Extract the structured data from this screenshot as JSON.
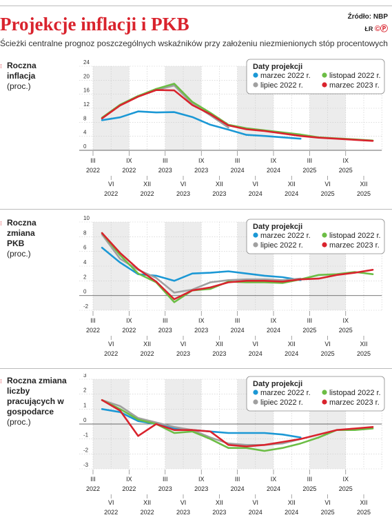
{
  "header": {
    "title": "Projekcje inflacji i PKB",
    "subtitle": "Ścieżki centralne prognoz poszczególnych wskaźników przy założeniu niezmienionych stóp procentowych",
    "source": "Źródło: NBP",
    "author": "ŁR"
  },
  "legend_title": "Daty projekcji",
  "colors": {
    "marzec2022": "#1b98d5",
    "lipiec2022": "#a0a0a0",
    "listopad2022": "#6cbd45",
    "marzec2023": "#d9232d"
  },
  "chart_data": [
    {
      "type": "line",
      "title": "Roczna inflacja",
      "unit": "(proc.)",
      "ylim": [
        0,
        24
      ],
      "yticks": [
        0,
        4,
        8,
        12,
        16,
        20,
        24
      ],
      "x_top": [
        "III",
        "IX",
        "III",
        "IX",
        "III",
        "IX",
        "III",
        "IX"
      ],
      "x_top_years": [
        "2022",
        "2022",
        "2023",
        "2023",
        "2024",
        "2024",
        "2025",
        "2025"
      ],
      "x_bottom": [
        "VI",
        "XII",
        "VI",
        "XII",
        "VI",
        "XII",
        "VI",
        "XII"
      ],
      "x_bottom_years": [
        "2022",
        "2022",
        "2023",
        "2023",
        "2024",
        "2024",
        "2025",
        "2025"
      ],
      "series": [
        {
          "name": "marzec 2022 r.",
          "color_key": "marzec2022",
          "x": [
            0,
            1,
            2,
            3,
            4,
            5,
            6,
            7,
            8,
            9,
            10,
            11
          ],
          "values": [
            8.6,
            9.4,
            11.1,
            10.8,
            10.9,
            9.5,
            7.3,
            5.9,
            4.4,
            4.1,
            3.7,
            3.3
          ]
        },
        {
          "name": "lipiec 2022 r.",
          "color_key": "lipiec2022",
          "x": [
            0,
            1,
            2,
            3,
            4,
            5,
            6,
            7
          ],
          "values": [
            9.1,
            13.0,
            15.5,
            17.2,
            18.5,
            13.3,
            10.0,
            6.5
          ]
        },
        {
          "name": "listopad 2022 r.",
          "color_key": "listopad2022",
          "x": [
            0,
            1,
            2,
            3,
            4,
            5,
            6,
            7,
            8,
            9,
            10,
            11,
            12,
            13,
            14,
            15
          ],
          "values": [
            9.3,
            13.0,
            15.5,
            17.5,
            19.0,
            13.8,
            10.7,
            7.3,
            6.3,
            5.7,
            5.1,
            4.5,
            3.7,
            3.4,
            3.1,
            2.8
          ]
        },
        {
          "name": "marzec 2023 r.",
          "color_key": "marzec2023",
          "x": [
            0,
            1,
            2,
            3,
            4,
            5,
            6,
            7,
            8,
            9,
            10,
            11,
            12,
            13,
            14,
            15
          ],
          "values": [
            9.1,
            12.8,
            15.3,
            17.2,
            17.1,
            12.9,
            10.3,
            7.1,
            6.0,
            5.5,
            4.8,
            4.1,
            3.6,
            3.3,
            3.0,
            2.7
          ]
        }
      ]
    },
    {
      "type": "line",
      "title": "Roczna zmiana PKB",
      "unit": "(proc.)",
      "ylim": [
        -2,
        10
      ],
      "yticks": [
        -2,
        0,
        2,
        4,
        6,
        8,
        10
      ],
      "x_top": [
        "III",
        "IX",
        "III",
        "IX",
        "III",
        "IX",
        "III",
        "IX"
      ],
      "x_top_years": [
        "2022",
        "2022",
        "2023",
        "2023",
        "2024",
        "2024",
        "2025",
        "2025"
      ],
      "x_bottom": [
        "VI",
        "XII",
        "VI",
        "XII",
        "VI",
        "XII",
        "VI",
        "XII"
      ],
      "x_bottom_years": [
        "2022",
        "2022",
        "2023",
        "2023",
        "2024",
        "2024",
        "2025",
        "2025"
      ],
      "series": [
        {
          "name": "marzec 2022 r.",
          "color_key": "marzec2022",
          "x": [
            0,
            1,
            2,
            3,
            4,
            5,
            6,
            7,
            8,
            9,
            10,
            11
          ],
          "values": [
            6.5,
            4.5,
            2.9,
            2.7,
            2.0,
            3.0,
            3.1,
            3.3,
            3.0,
            2.7,
            2.5,
            2.1
          ]
        },
        {
          "name": "lipiec 2022 r.",
          "color_key": "lipiec2022",
          "x": [
            0,
            1,
            2,
            3,
            4,
            5,
            6,
            7,
            8,
            9,
            10,
            11
          ],
          "values": [
            8.3,
            5.0,
            3.5,
            2.4,
            0.4,
            0.8,
            1.8,
            2.1,
            2.2,
            2.2,
            2.1,
            2.3
          ]
        },
        {
          "name": "listopad 2022 r.",
          "color_key": "listopad2022",
          "x": [
            0,
            1,
            2,
            3,
            4,
            5,
            6,
            7,
            8,
            9,
            10,
            11,
            12,
            13,
            14,
            15
          ],
          "values": [
            8.5,
            5.5,
            3.0,
            1.8,
            -0.9,
            0.7,
            0.9,
            1.9,
            1.8,
            1.8,
            1.7,
            2.2,
            2.8,
            2.9,
            3.2,
            2.9
          ]
        },
        {
          "name": "marzec 2023 r.",
          "color_key": "marzec2023",
          "x": [
            0,
            1,
            2,
            3,
            4,
            5,
            6,
            7,
            8,
            9,
            10,
            11,
            12,
            13,
            14,
            15
          ],
          "values": [
            8.5,
            5.8,
            3.6,
            1.9,
            -0.5,
            0.7,
            1.1,
            1.8,
            2.0,
            2.0,
            1.9,
            2.2,
            2.3,
            2.8,
            3.1,
            3.5
          ]
        }
      ]
    },
    {
      "type": "line",
      "title": "Roczna zmiana liczby pracujących w gospodarce",
      "unit": "(proc.)",
      "ylim": [
        -3,
        3
      ],
      "yticks": [
        -3,
        -2,
        -1,
        0,
        1,
        2,
        3
      ],
      "x_top": [
        "III",
        "IX",
        "III",
        "IX",
        "III",
        "IX",
        "III",
        "IX"
      ],
      "x_top_years": [
        "2022",
        "2022",
        "2023",
        "2023",
        "2024",
        "2024",
        "2025",
        "2025"
      ],
      "x_bottom": [
        "VI",
        "XII",
        "VI",
        "XII",
        "VI",
        "XII",
        "VI",
        "XII"
      ],
      "x_bottom_years": [
        "2022",
        "2022",
        "2023",
        "2023",
        "2024",
        "2024",
        "2025",
        "2025"
      ],
      "series": [
        {
          "name": "marzec 2022 r.",
          "color_key": "marzec2022",
          "x": [
            0,
            1,
            2,
            3,
            4,
            5,
            6,
            7,
            8,
            9,
            10,
            11
          ],
          "values": [
            1.0,
            0.8,
            0.2,
            0.0,
            -0.3,
            -0.4,
            -0.5,
            -0.6,
            -0.6,
            -0.6,
            -0.7,
            -0.9
          ]
        },
        {
          "name": "lipiec 2022 r.",
          "color_key": "lipiec2022",
          "x": [
            0,
            1,
            2,
            3,
            4,
            5,
            6,
            7,
            8,
            9,
            10,
            11
          ],
          "values": [
            1.6,
            1.2,
            0.4,
            0.1,
            -0.2,
            -0.4,
            -0.9,
            -1.3,
            -1.4,
            -1.4,
            -1.3,
            -1.0
          ]
        },
        {
          "name": "listopad 2022 r.",
          "color_key": "listopad2022",
          "x": [
            0,
            1,
            2,
            3,
            4,
            5,
            6,
            7,
            8,
            9,
            10,
            11,
            12,
            13,
            14,
            15
          ],
          "values": [
            1.6,
            1.0,
            0.3,
            0.0,
            -0.6,
            -0.5,
            -1.0,
            -1.6,
            -1.6,
            -1.8,
            -1.6,
            -1.3,
            -0.9,
            -0.4,
            -0.4,
            -0.3
          ]
        },
        {
          "name": "marzec 2023 r.",
          "color_key": "marzec2023",
          "x": [
            0,
            1,
            2,
            3,
            4,
            5,
            6,
            7,
            8,
            9,
            10,
            11,
            12,
            13,
            14,
            15
          ],
          "values": [
            1.6,
            0.9,
            -0.8,
            0.0,
            -0.4,
            -0.4,
            -0.5,
            -1.4,
            -1.5,
            -1.4,
            -1.2,
            -1.0,
            -0.7,
            -0.4,
            -0.3,
            -0.2
          ]
        }
      ]
    }
  ]
}
